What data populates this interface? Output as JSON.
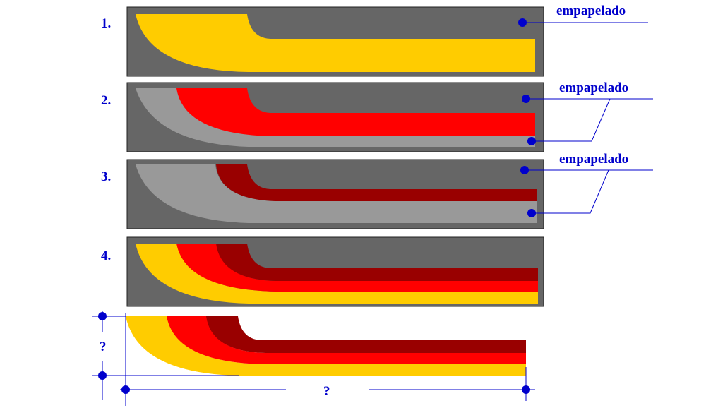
{
  "steps": [
    {
      "number": "1.",
      "callouts": [
        "empapelado"
      ]
    },
    {
      "number": "2.",
      "callouts": [
        "empapelado"
      ]
    },
    {
      "number": "3.",
      "callouts": [
        "empapelado"
      ]
    },
    {
      "number": "4.",
      "callouts": []
    }
  ],
  "dimensions": {
    "height_label": "?",
    "width_label": "?"
  },
  "colors": {
    "background": "#666666",
    "yellow": "#ffcc00",
    "red": "#ff0000",
    "dark_red": "#990000",
    "gray": "#999999",
    "annotation": "#0000cc"
  }
}
